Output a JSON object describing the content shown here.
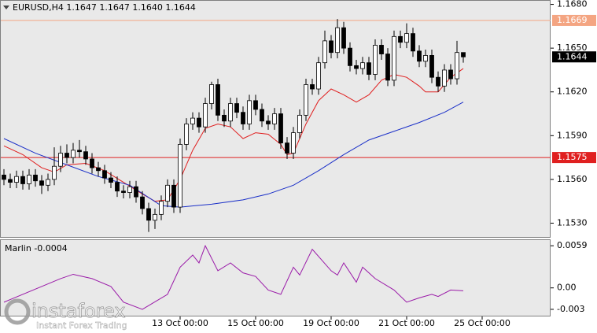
{
  "chart_data": [
    {
      "type": "candlestick",
      "title": "EURUSD,H4 1.1647 1.1647 1.1640 1.1644",
      "open": [
        1.1563,
        1.156,
        1.1558,
        1.1562,
        1.1557,
        1.1563,
        1.1559,
        1.1556,
        1.156,
        1.1569,
        1.1578,
        1.1575,
        1.158,
        1.1579,
        1.1574,
        1.1568,
        1.1566,
        1.1561,
        1.1558,
        1.1552,
        1.1551,
        1.1555,
        1.1548,
        1.154,
        1.1532,
        1.1536,
        1.1545,
        1.1556,
        1.1541,
        1.1584,
        1.1598,
        1.1602,
        1.1596,
        1.1612,
        1.1625,
        1.1604,
        1.16,
        1.1612,
        1.1606,
        1.1598,
        1.1614,
        1.1608,
        1.16,
        1.1598,
        1.1605,
        1.1585,
        1.1578,
        1.1592,
        1.1604,
        1.1625,
        1.1622,
        1.164,
        1.1655,
        1.1647,
        1.1664,
        1.165,
        1.1638,
        1.1636,
        1.164,
        1.1632,
        1.1652,
        1.1646,
        1.1628,
        1.1658,
        1.1654,
        1.166,
        1.1648,
        1.1641,
        1.1645,
        1.163,
        1.1624,
        1.1635,
        1.1629,
        1.1647
      ],
      "high": [
        1.1567,
        1.1564,
        1.1566,
        1.1566,
        1.1567,
        1.1567,
        1.1563,
        1.1564,
        1.1582,
        1.1583,
        1.1584,
        1.1585,
        1.1587,
        1.1583,
        1.1578,
        1.1572,
        1.157,
        1.1565,
        1.1562,
        1.1556,
        1.1559,
        1.1559,
        1.1552,
        1.1544,
        1.154,
        1.1549,
        1.156,
        1.156,
        1.1588,
        1.1602,
        1.1606,
        1.1606,
        1.1616,
        1.1627,
        1.1629,
        1.1608,
        1.1616,
        1.1616,
        1.161,
        1.1618,
        1.1618,
        1.1612,
        1.1604,
        1.1609,
        1.1609,
        1.1589,
        1.1596,
        1.1608,
        1.1629,
        1.1629,
        1.1644,
        1.1662,
        1.1659,
        1.167,
        1.1668,
        1.1654,
        1.1642,
        1.1644,
        1.1644,
        1.1656,
        1.1656,
        1.165,
        1.1662,
        1.1662,
        1.1667,
        1.1664,
        1.1652,
        1.1649,
        1.1649,
        1.1634,
        1.1639,
        1.1639,
        1.1655,
        1.1647
      ],
      "low": [
        1.1556,
        1.1554,
        1.1554,
        1.1553,
        1.1553,
        1.1555,
        1.155,
        1.1552,
        1.1556,
        1.1565,
        1.1571,
        1.1571,
        1.1575,
        1.157,
        1.1564,
        1.1562,
        1.1557,
        1.1554,
        1.1548,
        1.1547,
        1.1547,
        1.1544,
        1.1536,
        1.1524,
        1.1526,
        1.1532,
        1.1541,
        1.1537,
        1.1537,
        1.158,
        1.1594,
        1.1592,
        1.1592,
        1.1608,
        1.16,
        1.1596,
        1.1596,
        1.1602,
        1.1594,
        1.1594,
        1.1604,
        1.1596,
        1.1594,
        1.1594,
        1.1581,
        1.1574,
        1.1574,
        1.1588,
        1.16,
        1.1618,
        1.1618,
        1.1636,
        1.1643,
        1.1643,
        1.1646,
        1.1634,
        1.1632,
        1.1632,
        1.1628,
        1.1628,
        1.1642,
        1.1624,
        1.1624,
        1.165,
        1.165,
        1.1644,
        1.1637,
        1.1637,
        1.1626,
        1.162,
        1.162,
        1.1625,
        1.1625,
        1.164
      ],
      "close": [
        1.156,
        1.1558,
        1.1562,
        1.1557,
        1.1563,
        1.1559,
        1.1556,
        1.156,
        1.1569,
        1.1578,
        1.1575,
        1.158,
        1.1579,
        1.1574,
        1.1568,
        1.1566,
        1.1561,
        1.1558,
        1.1552,
        1.1551,
        1.1555,
        1.1548,
        1.154,
        1.1532,
        1.1536,
        1.1545,
        1.1556,
        1.1541,
        1.1584,
        1.1598,
        1.1602,
        1.1596,
        1.1612,
        1.1625,
        1.1604,
        1.16,
        1.1612,
        1.1606,
        1.1598,
        1.1614,
        1.1608,
        1.16,
        1.1598,
        1.1605,
        1.1585,
        1.1578,
        1.1592,
        1.1604,
        1.1625,
        1.1622,
        1.164,
        1.1655,
        1.1647,
        1.1664,
        1.165,
        1.1638,
        1.1636,
        1.164,
        1.1632,
        1.1652,
        1.1646,
        1.1628,
        1.1658,
        1.1654,
        1.166,
        1.1648,
        1.1641,
        1.1645,
        1.163,
        1.1624,
        1.1635,
        1.1629,
        1.1647,
        1.1644
      ],
      "up_color": "#ffffff",
      "down_color": "#000000",
      "series": [
        {
          "color": "#e01e1e",
          "x": [
            0,
            3,
            6,
            8,
            10,
            13,
            16,
            19,
            22,
            24,
            26,
            28,
            30,
            32,
            34,
            36,
            38,
            40,
            42,
            44,
            45,
            46,
            48,
            50,
            52,
            54,
            56,
            58,
            60,
            62,
            64,
            66,
            67,
            69,
            71,
            73
          ],
          "values": [
            1.1583,
            1.1577,
            1.1568,
            1.1565,
            1.157,
            1.1571,
            1.1566,
            1.1558,
            1.155,
            1.1545,
            1.1546,
            1.156,
            1.158,
            1.1595,
            1.1598,
            1.1596,
            1.1588,
            1.1592,
            1.1591,
            1.1584,
            1.1577,
            1.1578,
            1.1598,
            1.1614,
            1.1622,
            1.1618,
            1.1613,
            1.1618,
            1.1628,
            1.1632,
            1.163,
            1.1624,
            1.162,
            1.162,
            1.163,
            1.1636
          ]
        },
        {
          "color": "#1a2fc8",
          "x": [
            0,
            5,
            10,
            15,
            20,
            25,
            28,
            33,
            38,
            42,
            46,
            50,
            54,
            58,
            62,
            66,
            70,
            73
          ],
          "values": [
            1.1588,
            1.1578,
            1.157,
            1.1562,
            1.1556,
            1.1542,
            1.1541,
            1.1543,
            1.1546,
            1.155,
            1.1556,
            1.1566,
            1.1577,
            1.1587,
            1.1593,
            1.1599,
            1.1606,
            1.1613
          ]
        }
      ],
      "levels": [
        {
          "value": 1.1669,
          "color": "#f4a582"
        },
        {
          "value": 1.1575,
          "color": "#e02020"
        }
      ],
      "last_price": 1.1644,
      "ylim": [
        1.152,
        1.1683
      ],
      "yticks": [
        {
          "value": 1.168,
          "label": "1.1680"
        },
        {
          "value": 1.165,
          "label": "1.1650"
        },
        {
          "value": 1.162,
          "label": "1.1620"
        },
        {
          "value": 1.159,
          "label": "1.1590"
        },
        {
          "value": 1.156,
          "label": "1.1560"
        },
        {
          "value": 1.153,
          "label": "1.1530"
        }
      ],
      "xlim": [
        -0.625,
        86.875
      ],
      "xticks": [
        {
          "value": 28,
          "label": "13 Oct 00:00"
        },
        {
          "value": 40,
          "label": "15 Oct 00:00"
        },
        {
          "value": 52,
          "label": "19 Oct 00:00"
        },
        {
          "value": 64,
          "label": "21 Oct 00:00"
        },
        {
          "value": 76,
          "label": "25 Oct 00:00"
        }
      ]
    },
    {
      "type": "line",
      "title": "Marlin -0.0004",
      "color": "#9a1aa8",
      "x": [
        0,
        9,
        11,
        14,
        17,
        19,
        22,
        26,
        28,
        30,
        31,
        32,
        34,
        36,
        38,
        40,
        42,
        44,
        46,
        47,
        49,
        52,
        53,
        54,
        56,
        57,
        59,
        62,
        64,
        66,
        68,
        69,
        71,
        73
      ],
      "values": [
        -0.002,
        0.0013,
        0.0019,
        0.0013,
        0.0002,
        -0.002,
        -0.003,
        -0.0009,
        0.0029,
        0.0046,
        0.0035,
        0.0059,
        0.0024,
        0.0035,
        0.0021,
        0.0016,
        -0.0003,
        -0.0009,
        0.0029,
        0.0018,
        0.0054,
        0.0024,
        0.0018,
        0.0035,
        0.0008,
        0.0029,
        0.0013,
        -0.0003,
        -0.002,
        -0.0014,
        -0.0009,
        -0.0012,
        -0.0003,
        -0.0004
      ],
      "ylim": [
        -0.004,
        0.0068
      ],
      "yticks": [
        0.0059,
        {
          "value": 0,
          "label": "0.00"
        },
        -0.003
      ]
    }
  ],
  "watermark": {
    "brand": "instaforex",
    "tagline": "Instant Forex Trading"
  }
}
